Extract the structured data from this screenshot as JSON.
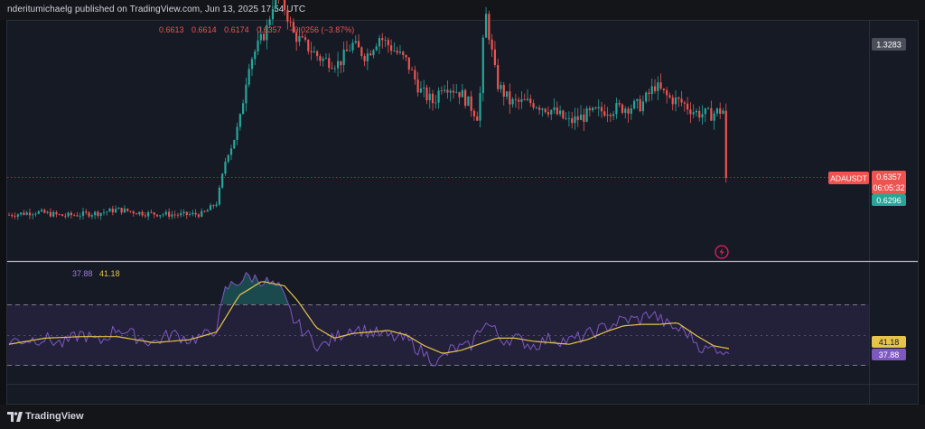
{
  "header": {
    "text": "nderitumichaelg published on TradingView.com, Jun 13, 2025 17:54 UTC"
  },
  "footer": {
    "brand": "TradingView",
    "logo_icon": "tradingview-logo-icon"
  },
  "colors": {
    "background": "#161a25",
    "up": "#26a69a",
    "down": "#ef5350",
    "rsi": "#7e57c2",
    "rsi_ma": "#e6c34a",
    "axis_label_dark": "#363a45"
  },
  "ohlc": {
    "open": "0.6613",
    "high": "0.6614",
    "low": "0.6174",
    "close": "0.6357",
    "change": "−0.0256 (−3.87%)"
  },
  "price_axis": {
    "top_label": "1.3283",
    "symbol_tag": "ADAUSDT",
    "last_price": "0.6357",
    "countdown": "06:05:32",
    "low_marker": "0.6296"
  },
  "rsi_legend": {
    "rsi_value": "37.88",
    "ma_value": "41.18"
  },
  "rsi_axis": {
    "ma_label": "41.18",
    "rsi_label": "37.88"
  },
  "chart_data": [
    {
      "type": "candlestick",
      "symbol": "ADAUSDT",
      "last_price": 0.6357,
      "ohlc_last": {
        "open": 0.6613,
        "high": 0.6614,
        "low": 0.6174,
        "close": 0.6357
      },
      "change": -0.0256,
      "change_pct": -3.87,
      "markers": [
        1.3283,
        0.6296
      ],
      "close_path": [
        [
          0,
          0.56
        ],
        [
          30,
          0.566
        ],
        [
          60,
          0.558
        ],
        [
          100,
          0.564
        ],
        [
          120,
          0.571
        ],
        [
          150,
          0.563
        ],
        [
          190,
          0.56
        ],
        [
          215,
          0.562
        ],
        [
          230,
          0.585
        ],
        [
          240,
          0.675
        ],
        [
          255,
          0.745
        ],
        [
          265,
          0.87
        ],
        [
          285,
          0.94
        ],
        [
          295,
          1.015
        ],
        [
          305,
          0.985
        ],
        [
          315,
          0.93
        ],
        [
          330,
          0.905
        ],
        [
          345,
          0.88
        ],
        [
          365,
          0.87
        ],
        [
          380,
          0.91
        ],
        [
          395,
          0.885
        ],
        [
          410,
          0.925
        ],
        [
          425,
          0.9
        ],
        [
          440,
          0.875
        ],
        [
          455,
          0.815
        ],
        [
          470,
          0.79
        ],
        [
          480,
          0.83
        ],
        [
          500,
          0.81
        ],
        [
          520,
          0.76
        ],
        [
          527,
          0.98
        ],
        [
          540,
          0.83
        ],
        [
          555,
          0.79
        ],
        [
          580,
          0.79
        ],
        [
          600,
          0.775
        ],
        [
          620,
          0.75
        ],
        [
          640,
          0.765
        ],
        [
          660,
          0.775
        ],
        [
          680,
          0.78
        ],
        [
          700,
          0.785
        ],
        [
          715,
          0.825
        ],
        [
          730,
          0.8
        ],
        [
          745,
          0.79
        ],
        [
          760,
          0.77
        ],
        [
          775,
          0.765
        ],
        [
          790,
          0.775
        ],
        [
          797,
          0.758
        ]
      ]
    },
    {
      "type": "line",
      "title": "RSI",
      "ylim": [
        0,
        100
      ],
      "bands": [
        30,
        50,
        70
      ],
      "series": [
        {
          "values": [
            [
              0,
              46
            ],
            [
              20,
              47
            ],
            [
              40,
              48
            ],
            [
              60,
              44
            ],
            [
              80,
              51
            ],
            [
              100,
              45
            ],
            [
              120,
              55
            ],
            [
              140,
              49
            ],
            [
              160,
              45
            ],
            [
              180,
              51
            ],
            [
              200,
              47
            ],
            [
              220,
              50
            ],
            [
              230,
              55
            ],
            [
              240,
              80
            ],
            [
              250,
              84
            ],
            [
              265,
              88
            ],
            [
              280,
              86
            ],
            [
              300,
              80
            ],
            [
              315,
              60
            ],
            [
              330,
              50
            ],
            [
              345,
              42
            ],
            [
              360,
              48
            ],
            [
              380,
              55
            ],
            [
              400,
              52
            ],
            [
              420,
              49
            ],
            [
              440,
              47
            ],
            [
              460,
              38
            ],
            [
              475,
              32
            ],
            [
              490,
              41
            ],
            [
              510,
              42
            ],
            [
              525,
              58
            ],
            [
              535,
              55
            ],
            [
              545,
              47
            ],
            [
              560,
              48
            ],
            [
              580,
              43
            ],
            [
              600,
              48
            ],
            [
              620,
              46
            ],
            [
              640,
              50
            ],
            [
              660,
              55
            ],
            [
              680,
              60
            ],
            [
              700,
              60
            ],
            [
              710,
              65
            ],
            [
              730,
              56
            ],
            [
              750,
              52
            ],
            [
              770,
              40
            ],
            [
              785,
              42
            ],
            [
              797,
              37.88
            ]
          ]
        },
        {
          "values": [
            [
              0,
              44
            ],
            [
              40,
              48
            ],
            [
              80,
              49
            ],
            [
              120,
              49
            ],
            [
              160,
              45
            ],
            [
              200,
              47
            ],
            [
              230,
              52
            ],
            [
              255,
              76
            ],
            [
              280,
              85
            ],
            [
              305,
              82
            ],
            [
              320,
              72
            ],
            [
              340,
              55
            ],
            [
              360,
              48
            ],
            [
              380,
              51
            ],
            [
              400,
              52
            ],
            [
              420,
              53
            ],
            [
              440,
              50
            ],
            [
              460,
              43
            ],
            [
              480,
              38
            ],
            [
              500,
              40
            ],
            [
              520,
              44
            ],
            [
              540,
              48
            ],
            [
              560,
              48
            ],
            [
              580,
              46
            ],
            [
              600,
              45
            ],
            [
              620,
              44
            ],
            [
              640,
              47
            ],
            [
              660,
              52
            ],
            [
              680,
              56
            ],
            [
              700,
              57
            ],
            [
              720,
              57
            ],
            [
              740,
              58
            ],
            [
              760,
              50
            ],
            [
              780,
              43
            ],
            [
              797,
              41.18
            ]
          ]
        }
      ]
    }
  ]
}
